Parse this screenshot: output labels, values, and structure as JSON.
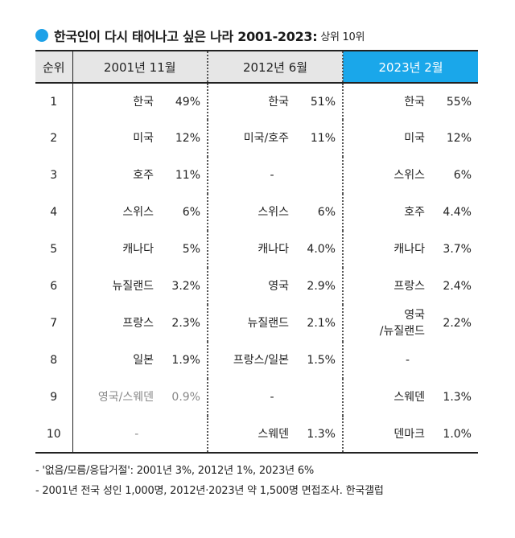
{
  "title": "한국인이 다시 태어나고 싶은 나라 2001-2023:",
  "subtitle": "상위 10위",
  "accent_color": "#1aa7ea",
  "chart_data": {
    "type": "table",
    "title": "한국인이 다시 태어나고 싶은 나라 2001-2023: 상위 10위",
    "columns": [
      "순위",
      "2001년 11월",
      "2012년 6월",
      "2023년 2월"
    ],
    "highlight_column": "2023년 2월",
    "rows": [
      {
        "rank": "1",
        "cells": [
          {
            "country": "한국",
            "pct": "49%"
          },
          {
            "country": "한국",
            "pct": "51%"
          },
          {
            "country": "한국",
            "pct": "55%"
          }
        ]
      },
      {
        "rank": "2",
        "cells": [
          {
            "country": "미국",
            "pct": "12%"
          },
          {
            "country": "미국/호주",
            "pct": "11%"
          },
          {
            "country": "미국",
            "pct": "12%"
          }
        ]
      },
      {
        "rank": "3",
        "cells": [
          {
            "country": "호주",
            "pct": "11%"
          },
          {
            "country": "-",
            "pct": ""
          },
          {
            "country": "스위스",
            "pct": "6%"
          }
        ]
      },
      {
        "rank": "4",
        "cells": [
          {
            "country": "스위스",
            "pct": "6%"
          },
          {
            "country": "스위스",
            "pct": "6%"
          },
          {
            "country": "호주",
            "pct": "4.4%"
          }
        ]
      },
      {
        "rank": "5",
        "cells": [
          {
            "country": "캐나다",
            "pct": "5%"
          },
          {
            "country": "캐나다",
            "pct": "4.0%"
          },
          {
            "country": "캐나다",
            "pct": "3.7%"
          }
        ]
      },
      {
        "rank": "6",
        "cells": [
          {
            "country": "뉴질랜드",
            "pct": "3.2%"
          },
          {
            "country": "영국",
            "pct": "2.9%"
          },
          {
            "country": "프랑스",
            "pct": "2.4%"
          }
        ]
      },
      {
        "rank": "7",
        "cells": [
          {
            "country": "프랑스",
            "pct": "2.3%"
          },
          {
            "country": "뉴질랜드",
            "pct": "2.1%"
          },
          {
            "country": "영국\n/뉴질랜드",
            "pct": "2.2%"
          }
        ]
      },
      {
        "rank": "8",
        "cells": [
          {
            "country": "일본",
            "pct": "1.9%"
          },
          {
            "country": "프랑스/일본",
            "pct": "1.5%"
          },
          {
            "country": "-",
            "pct": ""
          }
        ]
      },
      {
        "rank": "9",
        "cells": [
          {
            "country": "영국/스웨덴",
            "pct": "0.9%",
            "muted": true
          },
          {
            "country": "-",
            "pct": ""
          },
          {
            "country": "스웨덴",
            "pct": "1.3%"
          }
        ]
      },
      {
        "rank": "10",
        "cells": [
          {
            "country": "-",
            "pct": "",
            "muted": true
          },
          {
            "country": "스웨덴",
            "pct": "1.3%"
          },
          {
            "country": "덴마크",
            "pct": "1.0%"
          }
        ]
      }
    ]
  },
  "notes": [
    "- '없음/모름/응답거절': 2001년 3%, 2012년 1%, 2023년 6%",
    "- 2001년 전국 성인 1,000명, 2012년·2023년 약 1,500명 면접조사. 한국갤럽"
  ]
}
